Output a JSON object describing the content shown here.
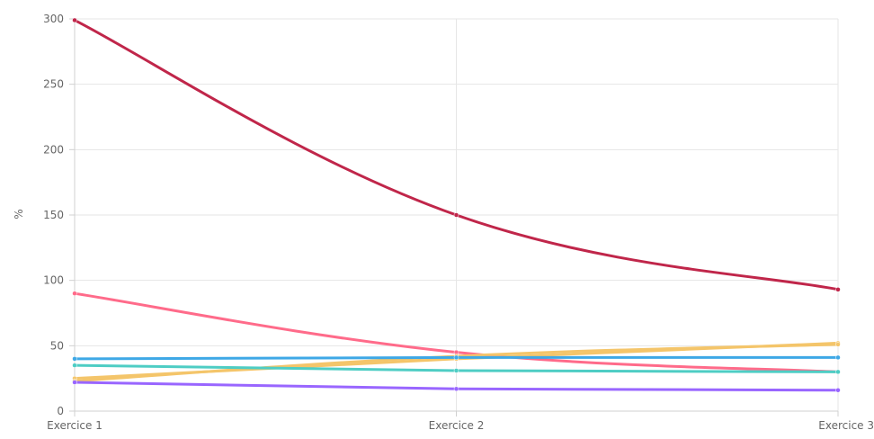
{
  "chart_data": {
    "type": "line",
    "title": "",
    "xlabel": "",
    "ylabel": "%",
    "categories": [
      "Exercice 1",
      "Exercice 2",
      "Exercice 3"
    ],
    "ylim": [
      0,
      300
    ],
    "yticks": [
      0,
      50,
      100,
      150,
      200,
      250,
      300
    ],
    "grid": true,
    "legend": "none",
    "series": [
      {
        "color": "#c0264a",
        "values": [
          299,
          150,
          93
        ]
      },
      {
        "color": "#ff6b8a",
        "values": [
          90,
          45,
          30
        ]
      },
      {
        "color": "#f4c56a",
        "values": [
          25,
          40,
          52
        ]
      },
      {
        "color": "#f4c56a",
        "values": [
          23,
          42,
          51
        ]
      },
      {
        "color": "#3ea8e6",
        "values": [
          40,
          41,
          41
        ]
      },
      {
        "color": "#4ecdc4",
        "values": [
          35,
          31,
          30
        ]
      },
      {
        "color": "#9966ff",
        "values": [
          22,
          17,
          16
        ]
      }
    ]
  }
}
